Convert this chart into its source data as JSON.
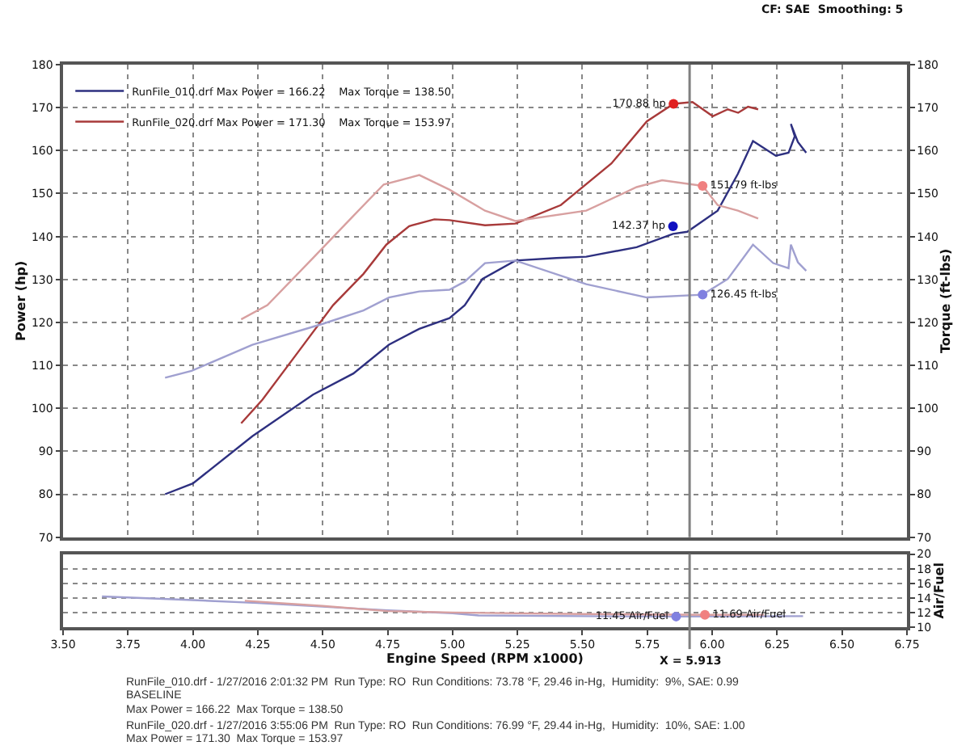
{
  "chart_data": [
    {
      "type": "line",
      "xlim": [
        3.5,
        6.75
      ],
      "xticks": [
        {
          "value": 3.5,
          "label": null
        },
        {
          "value": 3.75,
          "label": null
        },
        {
          "value": 4.0,
          "label": null
        },
        {
          "value": 4.25,
          "label": null
        },
        {
          "value": 4.5,
          "label": null
        },
        {
          "value": 4.75,
          "label": null
        },
        {
          "value": 5.0,
          "label": null
        },
        {
          "value": 5.25,
          "label": null
        },
        {
          "value": 5.5,
          "label": null
        },
        {
          "value": 5.75,
          "label": null
        },
        {
          "value": 6.0,
          "label": null
        },
        {
          "value": 6.25,
          "label": null
        },
        {
          "value": 6.5,
          "label": null
        },
        {
          "value": 6.75,
          "label": null
        }
      ],
      "ylim": [
        70,
        180
      ],
      "yticks": [
        70,
        80,
        90,
        100,
        110,
        120,
        130,
        140,
        150,
        160,
        170,
        180
      ],
      "y2lim": [
        70,
        180
      ],
      "y2ticks": [
        70,
        80,
        90,
        100,
        110,
        120,
        130,
        140,
        150,
        160,
        170,
        180
      ],
      "ylabel": "Power (hp)",
      "y2label": "Torque (ft-lbs)",
      "grid": true,
      "legend": "top left",
      "tick_labels": "y",
      "line_style": "solid",
      "marker": "none",
      "annotations": [
        "CF: SAE  Smoothing: 5"
      ],
      "ref_lines": [
        {
          "axis": "x",
          "value": 5.913,
          "color": "#808080"
        }
      ],
      "series": [
        {
          "name": "RunFile_010.drf Max Power = 166.22    Max Torque = 138.50",
          "color": "#2e3080",
          "x": [
            3.893,
            4.0,
            4.229,
            4.463,
            4.618,
            4.755,
            4.872,
            4.988,
            5.047,
            5.115,
            5.242,
            5.4,
            5.515,
            5.709,
            5.849,
            5.904,
            6.021,
            6.099,
            6.157,
            6.245,
            6.294,
            6.318,
            6.303,
            6.33,
            6.362
          ],
          "values": [
            80.0,
            82.5,
            93.5,
            103.2,
            108.1,
            114.8,
            118.5,
            121.0,
            124.0,
            130.1,
            134.4,
            135.0,
            135.3,
            137.5,
            140.6,
            141.1,
            146.0,
            154.6,
            162.2,
            158.8,
            159.5,
            163.3,
            166.2,
            162.0,
            159.5
          ]
        },
        {
          "color": "#a0a0d0",
          "axis": "y2",
          "x": [
            3.893,
            3.995,
            4.229,
            4.502,
            4.657,
            4.755,
            4.872,
            4.988,
            5.047,
            5.125,
            5.242,
            5.515,
            5.748,
            5.963,
            6.06,
            6.157,
            6.235,
            6.294,
            6.303,
            6.33,
            6.362
          ],
          "values": [
            107.1,
            108.7,
            114.8,
            119.7,
            122.8,
            125.8,
            127.2,
            127.6,
            129.5,
            133.8,
            134.4,
            128.9,
            125.8,
            126.45,
            130.1,
            138.1,
            133.8,
            132.6,
            138.1,
            134.0,
            132.0
          ]
        },
        {
          "name": "RunFile_020.drf Max Power = 171.30    Max Torque = 153.97",
          "color": "#a83a3a",
          "x": [
            4.186,
            4.268,
            4.404,
            4.54,
            4.657,
            4.745,
            4.833,
            4.93,
            4.988,
            5.125,
            5.242,
            5.417,
            5.612,
            5.748,
            5.851,
            5.924,
            6.002,
            6.06,
            6.1,
            6.138,
            6.177
          ],
          "values": [
            96.5,
            102.0,
            113.0,
            124.0,
            131.3,
            138.1,
            142.4,
            144.0,
            143.8,
            142.6,
            143.0,
            147.3,
            157.0,
            166.8,
            170.88,
            171.3,
            168.0,
            169.6,
            168.8,
            170.2,
            169.6
          ]
        },
        {
          "color": "#d8a0a0",
          "axis": "y2",
          "x": [
            4.186,
            4.287,
            4.463,
            4.618,
            4.735,
            4.872,
            4.988,
            5.125,
            5.242,
            5.515,
            5.709,
            5.807,
            5.924,
            5.963,
            6.021,
            6.099,
            6.177
          ],
          "values": [
            120.7,
            124.0,
            135.0,
            144.8,
            152.1,
            154.3,
            150.9,
            146.0,
            143.6,
            146.0,
            151.5,
            153.1,
            152.1,
            151.79,
            147.3,
            146.0,
            144.2
          ]
        },
        {
          "type": "scatter",
          "marker": "circle",
          "color": "#e02020",
          "x": [
            5.851
          ],
          "values": [
            170.88
          ],
          "value_labels": [
            "170.88 hp"
          ]
        },
        {
          "type": "scatter",
          "marker": "circle",
          "color": "#f08080",
          "axis": "y2",
          "x": [
            5.963
          ],
          "values": [
            151.79
          ],
          "value_labels": [
            "151.79 ft-lbs"
          ]
        },
        {
          "type": "scatter",
          "marker": "circle",
          "color": "#1010c0",
          "x": [
            5.849
          ],
          "values": [
            142.37
          ],
          "value_labels": [
            "142.37 hp"
          ]
        },
        {
          "type": "scatter",
          "marker": "circle",
          "color": "#8080e0",
          "axis": "y2",
          "x": [
            5.963
          ],
          "values": [
            126.45
          ],
          "value_labels": [
            "126.45 ft-lbs"
          ]
        }
      ]
    },
    {
      "type": "line",
      "xlim": [
        3.5,
        6.75
      ],
      "xticks": [
        {
          "value": 3.5,
          "label": "3.50"
        },
        {
          "value": 3.75,
          "label": "3.75"
        },
        {
          "value": 4.0,
          "label": "4.00"
        },
        {
          "value": 4.25,
          "label": "4.25"
        },
        {
          "value": 4.5,
          "label": "4.50"
        },
        {
          "value": 4.75,
          "label": "4.75"
        },
        {
          "value": 5.0,
          "label": "5.00"
        },
        {
          "value": 5.25,
          "label": "5.25"
        },
        {
          "value": 5.5,
          "label": "5.50"
        },
        {
          "value": 5.75,
          "label": "5.75"
        },
        {
          "value": 6.0,
          "label": "6.00"
        },
        {
          "value": 6.25,
          "label": "6.25"
        },
        {
          "value": 6.5,
          "label": "6.50"
        },
        {
          "value": 6.75,
          "label": "6.75"
        }
      ],
      "xlabel": "Engine Speed (RPM x1000)",
      "y2lim": [
        10,
        20
      ],
      "y2ticks": [
        10,
        12,
        14,
        16,
        18,
        20
      ],
      "y2label": "Air/Fuel",
      "grid": "y",
      "line_style": "solid",
      "marker": "none",
      "ref_lines": [
        {
          "axis": "x",
          "value": 5.913,
          "label": "X = 5.913",
          "color": "#808080"
        }
      ],
      "annotations": [
        "RunFile_010.drf - 1/27/2016 2:01:32 PM  Run Type: RO  Run Conditions: 73.78 °F, 29.46 in-Hg,  Humidity:  9%, SAE: 0.99",
        "BASELINE",
        "Max Power = 166.22  Max Torque = 138.50",
        "RunFile_020.drf - 1/27/2016 3:55:06 PM  Run Type: RO  Run Conditions: 76.99 °F, 29.44 in-Hg,  Humidity:  10%, SAE: 1.00",
        "Max Power = 171.30  Max Torque = 153.97"
      ],
      "series": [
        {
          "color": "#a0a0d0",
          "axis": "y2",
          "x": [
            3.65,
            4.0,
            4.25,
            4.5,
            4.75,
            5.0,
            5.1,
            5.5,
            5.861,
            6.35
          ],
          "values": [
            14.2,
            13.7,
            13.3,
            12.8,
            12.3,
            11.9,
            11.6,
            11.5,
            11.45,
            11.5
          ]
        },
        {
          "color": "#d8a0a0",
          "axis": "y2",
          "x": [
            4.2,
            4.5,
            4.75,
            5.0,
            5.5,
            5.972,
            6.2
          ],
          "values": [
            13.6,
            12.9,
            12.2,
            12.0,
            11.8,
            11.69,
            11.7
          ]
        },
        {
          "type": "scatter",
          "marker": "circle",
          "color": "#8080e0",
          "axis": "y2",
          "x": [
            5.861
          ],
          "values": [
            11.45
          ],
          "value_labels": [
            "11.45 Air/Fuel"
          ]
        },
        {
          "type": "scatter",
          "marker": "circle",
          "color": "#f08080",
          "axis": "y2",
          "x": [
            5.972
          ],
          "values": [
            11.69
          ],
          "value_labels": [
            "11.69 Air/Fuel"
          ]
        }
      ]
    }
  ]
}
